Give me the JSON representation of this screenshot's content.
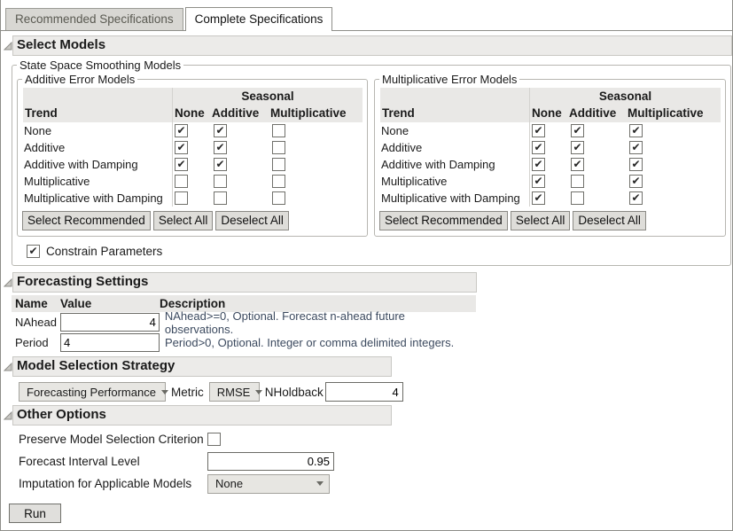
{
  "tabs": [
    {
      "label": "Recommended Specifications",
      "active": false
    },
    {
      "label": "Complete Specifications",
      "active": true
    }
  ],
  "select_models": {
    "title": "Select Models"
  },
  "state_space": {
    "title": "State Space Smoothing Models",
    "constrain_label": "Constrain Parameters",
    "constrain_checked": true,
    "panels": [
      {
        "title": "Additive Error Models",
        "seasonal_header": "Seasonal",
        "trend_header": "Trend",
        "columns": [
          "None",
          "Additive",
          "Multiplicative"
        ],
        "rows": [
          {
            "label": "None",
            "checks": [
              true,
              true,
              false
            ]
          },
          {
            "label": "Additive",
            "checks": [
              true,
              true,
              false
            ]
          },
          {
            "label": "Additive with Damping",
            "checks": [
              true,
              true,
              false
            ]
          },
          {
            "label": "Multiplicative",
            "checks": [
              false,
              false,
              false
            ]
          },
          {
            "label": "Multiplicative with Damping",
            "checks": [
              false,
              false,
              false
            ]
          }
        ],
        "buttons": [
          "Select Recommended",
          "Select All",
          "Deselect All"
        ]
      },
      {
        "title": "Multiplicative Error Models",
        "seasonal_header": "Seasonal",
        "trend_header": "Trend",
        "columns": [
          "None",
          "Additive",
          "Multiplicative"
        ],
        "rows": [
          {
            "label": "None",
            "checks": [
              true,
              true,
              true
            ]
          },
          {
            "label": "Additive",
            "checks": [
              true,
              true,
              true
            ]
          },
          {
            "label": "Additive with Damping",
            "checks": [
              true,
              true,
              true
            ]
          },
          {
            "label": "Multiplicative",
            "checks": [
              true,
              false,
              true
            ]
          },
          {
            "label": "Multiplicative with Damping",
            "checks": [
              true,
              false,
              true
            ]
          }
        ],
        "buttons": [
          "Select Recommended",
          "Select All",
          "Deselect All"
        ]
      }
    ]
  },
  "forecasting": {
    "title": "Forecasting Settings",
    "headers": [
      "Name",
      "Value",
      "Description"
    ],
    "rows": [
      {
        "name": "NAhead",
        "value": "4",
        "description": "NAhead>=0, Optional. Forecast n-ahead future observations."
      },
      {
        "name": "Period",
        "value": "4",
        "description": "Period>0, Optional. Integer or comma delimited integers."
      }
    ]
  },
  "model_selection": {
    "title": "Model Selection Strategy",
    "strategy_value": "Forecasting Performance",
    "metric_label": "Metric",
    "metric_value": "RMSE",
    "nholdback_label": "NHoldback",
    "nholdback_value": "4"
  },
  "other_options": {
    "title": "Other Options",
    "preserve_label": "Preserve Model Selection Criterion",
    "preserve_checked": false,
    "interval_label": "Forecast Interval Level",
    "interval_value": "0.95",
    "imputation_label": "Imputation for Applicable Models",
    "imputation_value": "None"
  },
  "run_label": "Run",
  "colors": {
    "section_bar_bg": "#ecebe9",
    "table_header_bg": "#e9e8e6",
    "description_text": "#3c4a5f",
    "inactive_tab_bg": "#d8d7d3",
    "border": "#8e8e89"
  }
}
